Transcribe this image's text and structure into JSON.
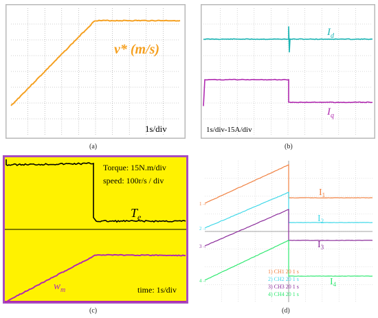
{
  "captions": {
    "a": "(a)",
    "b": "(b)",
    "c": "(c)",
    "d": "(d)"
  },
  "colors": {
    "orange": "#f5a020",
    "cyan": "#1bb5b5",
    "magenta": "#b02ab0",
    "black": "#000000",
    "yellow_bg": "#fff200",
    "purple_bg": "#a64cc0",
    "d_orange": "#f08040",
    "d_cyan": "#3fd8e8",
    "d_purple": "#8a2a9a",
    "d_green": "#2ee870"
  },
  "panel_a": {
    "label": "v* (m/s)",
    "scale": "1s/div"
  },
  "panel_b": {
    "label_id": "I",
    "label_id_sub": "d",
    "label_iq": "I",
    "label_iq_sub": "q",
    "scale": "1s/div-15A/div"
  },
  "panel_c": {
    "torque_scale": "Torque: 15N.m/div",
    "speed_scale": "speed: 100r/s / div",
    "te_label": "T",
    "te_sub": "e",
    "wm_label": "w",
    "wm_sub": "m",
    "time_scale": "time: 1s/div"
  },
  "panel_d": {
    "labels": [
      "I",
      "I",
      "I",
      "I"
    ],
    "subs": [
      "1",
      "2",
      "3",
      "4"
    ],
    "markers": [
      "1→",
      "2→",
      "3→",
      "4→"
    ],
    "channels": [
      "1) CH1  20    1  s",
      "2) CH2  20    1  s",
      "3) CH3  20    1  s",
      "4) CH4  20    1  s"
    ]
  },
  "chart_data": [
    {
      "type": "line",
      "panel": "a",
      "series": [
        {
          "name": "v* (m/s)",
          "x": [
            0,
            3,
            6
          ],
          "y": [
            0,
            1,
            1
          ]
        }
      ],
      "grid": true
    },
    {
      "type": "line",
      "panel": "b",
      "series": [
        {
          "name": "Id",
          "x": [
            0,
            3.5,
            6
          ],
          "y": [
            0,
            0,
            0
          ]
        },
        {
          "name": "Iq",
          "x": [
            0,
            3.5,
            3.5,
            6
          ],
          "y": [
            1,
            1,
            -0.1,
            -0.1
          ]
        }
      ],
      "grid": true
    },
    {
      "type": "line",
      "panel": "c",
      "series": [
        {
          "name": "Te",
          "x": [
            0,
            3.5,
            3.5,
            7
          ],
          "y": [
            1,
            1,
            0.05,
            0.05
          ]
        },
        {
          "name": "wm",
          "x": [
            0,
            3.5,
            7
          ],
          "y": [
            0,
            1,
            1
          ]
        }
      ]
    },
    {
      "type": "line",
      "panel": "d",
      "series": [
        {
          "name": "I1",
          "x": [
            0,
            3.5,
            7
          ],
          "y": [
            0,
            1,
            1
          ]
        },
        {
          "name": "I2",
          "x": [
            0,
            3.5,
            7
          ],
          "y": [
            0,
            1,
            1
          ]
        },
        {
          "name": "I3",
          "x": [
            0,
            3.5,
            7
          ],
          "y": [
            0,
            1,
            1
          ]
        },
        {
          "name": "I4",
          "x": [
            0,
            3.5,
            7
          ],
          "y": [
            0,
            1,
            1
          ]
        }
      ],
      "grid": true
    }
  ]
}
